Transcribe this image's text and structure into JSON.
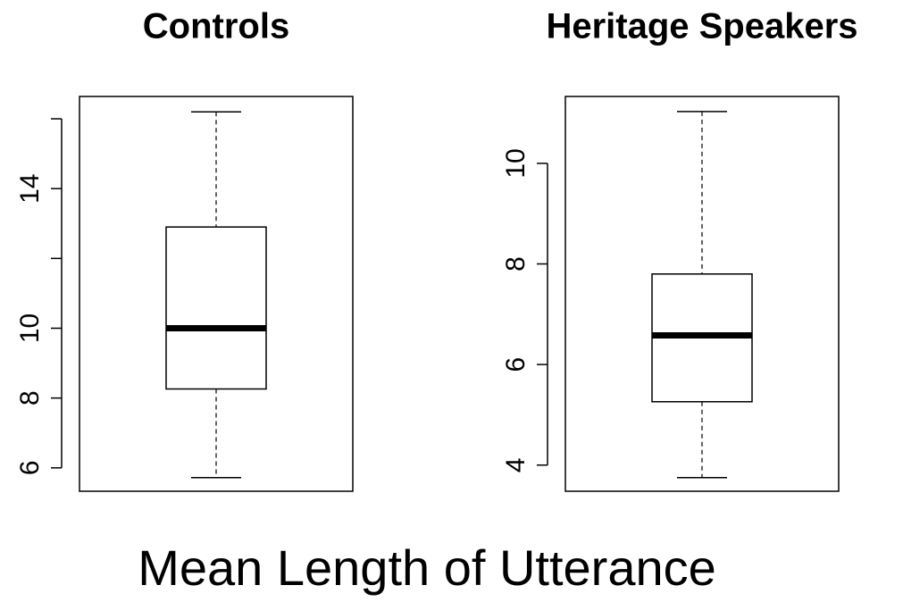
{
  "caption": "Mean Length of Utterance",
  "chart_data": [
    {
      "type": "box",
      "title": "Controls",
      "ylim": [
        5.33,
        16.64
      ],
      "yticks": [
        6,
        8,
        10,
        {
          "value": 12,
          "label": null
        },
        14,
        {
          "value": 16,
          "label": null
        }
      ],
      "stats": {
        "min": 5.72,
        "q1": 8.26,
        "median": 10.0,
        "q3": 12.9,
        "max": 16.2
      }
    },
    {
      "type": "box",
      "title": "Heritage Speakers",
      "ylim": [
        3.48,
        11.33
      ],
      "yticks": [
        4,
        6,
        8,
        10
      ],
      "stats": {
        "min": 3.75,
        "q1": 5.26,
        "median": 6.58,
        "q3": 7.8,
        "max": 11.03
      }
    }
  ]
}
